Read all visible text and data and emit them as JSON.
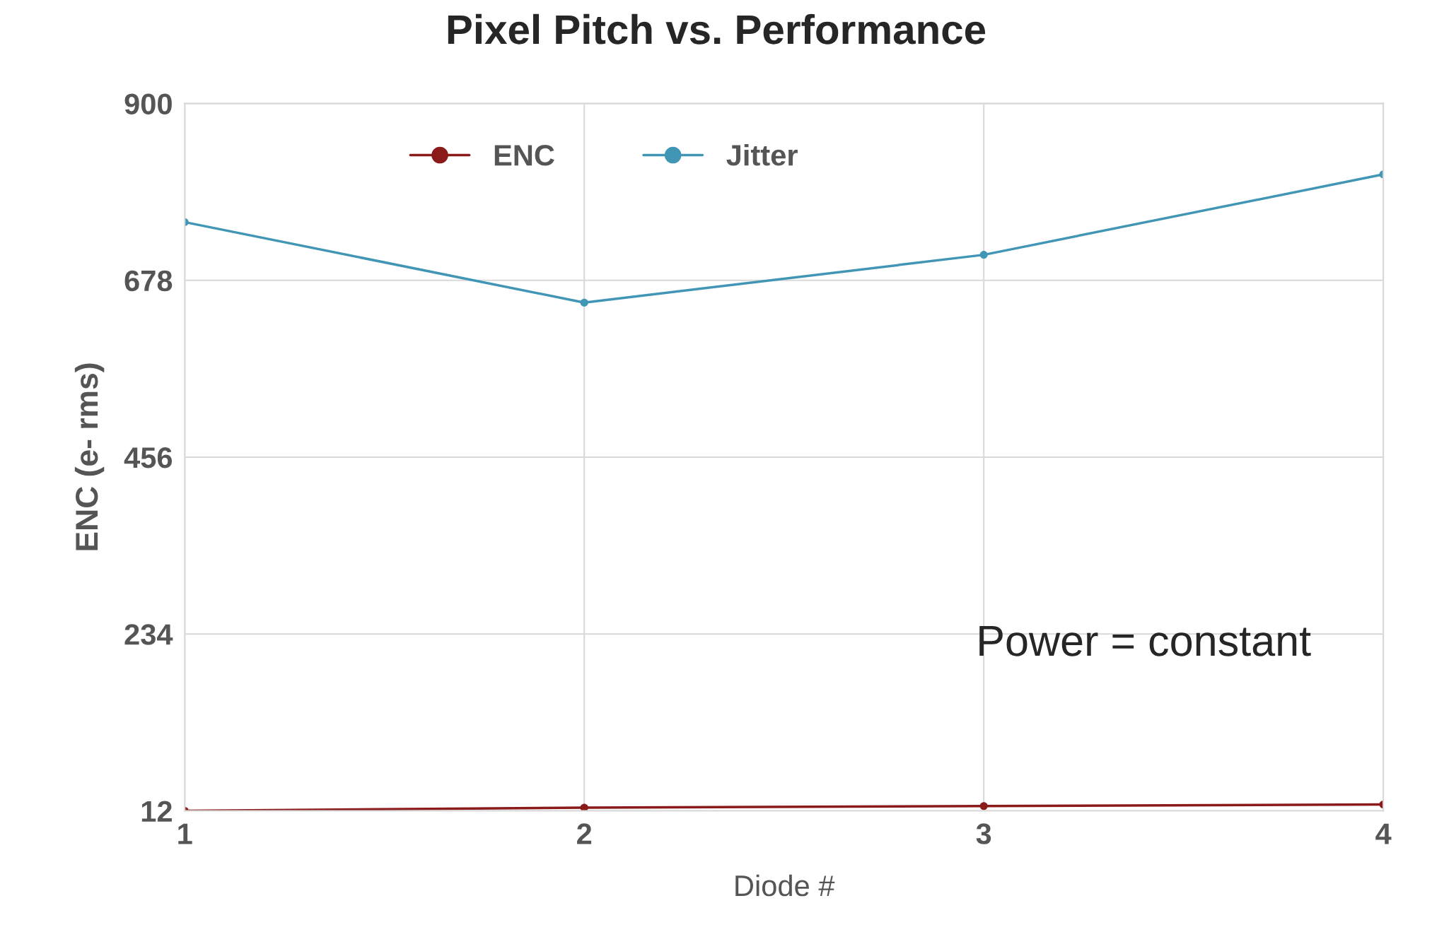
{
  "chart_data": {
    "type": "line",
    "title": "Pixel Pitch vs. Performance",
    "xlabel": "Diode #",
    "ylabel": "ENC (e- rms)",
    "x": [
      1,
      2,
      3,
      4
    ],
    "series": [
      {
        "name": "ENC",
        "color": "#8b1a1a",
        "values": [
          12,
          16,
          18,
          20
        ]
      },
      {
        "name": "Jitter",
        "color": "#4096b4",
        "values": [
          751,
          650,
          710,
          811
        ]
      }
    ],
    "xlim": [
      1,
      4
    ],
    "xticks": [
      1,
      2,
      3,
      4
    ],
    "ylim": [
      12,
      900
    ],
    "yticks": [
      12,
      234,
      456,
      678,
      900
    ],
    "grid": true,
    "legend": "top",
    "marker": "circle",
    "line_style": "solid",
    "annotations": [
      "Power = constant"
    ]
  }
}
